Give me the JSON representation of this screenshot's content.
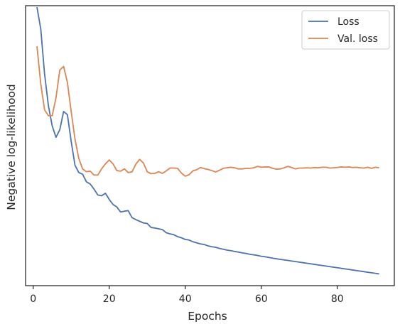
{
  "chart_data": {
    "type": "line",
    "title": "",
    "xlabel": "Epochs",
    "ylabel": "Negative log-likelihood",
    "xlim": [
      -2,
      95
    ],
    "ylim": [
      0,
      100
    ],
    "xticks": [
      0,
      20,
      40,
      60,
      80
    ],
    "yticks": [],
    "grid": false,
    "legend_position": "top-right",
    "series": [
      {
        "name": "Loss",
        "color": "#4c72b0",
        "x": [
          1,
          2,
          3,
          4,
          5,
          6,
          7,
          8,
          9,
          10,
          11,
          12,
          13,
          14,
          15,
          16,
          17,
          18,
          19,
          20,
          21,
          22,
          23,
          24,
          25,
          26,
          27,
          28,
          29,
          30,
          31,
          32,
          33,
          34,
          35,
          36,
          37,
          38,
          39,
          40,
          41,
          42,
          43,
          44,
          45,
          46,
          47,
          48,
          49,
          50,
          51,
          52,
          53,
          54,
          55,
          56,
          57,
          58,
          59,
          60,
          61,
          62,
          63,
          64,
          65,
          66,
          67,
          68,
          69,
          70,
          71,
          72,
          73,
          74,
          75,
          76,
          77,
          78,
          79,
          80,
          81,
          82,
          83,
          84,
          85,
          86,
          87,
          88,
          89,
          90,
          91
        ],
        "y": [
          99.5,
          91.6,
          75.6,
          64.3,
          57.1,
          53.0,
          55.7,
          62.2,
          61.1,
          51.5,
          43.0,
          40.4,
          39.8,
          37.1,
          36.3,
          34.5,
          32.4,
          32.1,
          33.0,
          30.8,
          29.0,
          28.1,
          26.3,
          26.6,
          26.8,
          24.3,
          23.6,
          23.0,
          22.4,
          22.2,
          20.8,
          20.6,
          20.3,
          20.0,
          18.9,
          18.5,
          18.2,
          17.5,
          17.1,
          16.5,
          16.3,
          15.7,
          15.3,
          14.9,
          14.7,
          14.2,
          13.9,
          13.7,
          13.3,
          13.0,
          12.7,
          12.5,
          12.2,
          12.0,
          11.7,
          11.5,
          11.2,
          11.0,
          10.8,
          10.5,
          10.3,
          10.1,
          9.8,
          9.6,
          9.4,
          9.2,
          9.0,
          8.8,
          8.6,
          8.4,
          8.2,
          8.0,
          7.8,
          7.6,
          7.4,
          7.2,
          7.0,
          6.8,
          6.6,
          6.4,
          6.2,
          6.0,
          5.8,
          5.6,
          5.4,
          5.2,
          5.0,
          4.8,
          4.6,
          4.4,
          4.2
        ]
      },
      {
        "name": "Val. loss",
        "color": "#dd8452",
        "x": [
          1,
          2,
          3,
          4,
          5,
          6,
          7,
          8,
          9,
          10,
          11,
          12,
          13,
          14,
          15,
          16,
          17,
          18,
          19,
          20,
          21,
          22,
          23,
          24,
          25,
          26,
          27,
          28,
          29,
          30,
          31,
          32,
          33,
          34,
          35,
          36,
          37,
          38,
          39,
          40,
          41,
          42,
          43,
          44,
          45,
          46,
          47,
          48,
          49,
          50,
          51,
          52,
          53,
          54,
          55,
          56,
          57,
          58,
          59,
          60,
          61,
          62,
          63,
          64,
          65,
          66,
          67,
          68,
          69,
          70,
          71,
          72,
          73,
          74,
          75,
          76,
          77,
          78,
          79,
          80,
          81,
          82,
          83,
          84,
          85,
          86,
          87,
          88,
          89,
          90,
          91
        ],
        "y": [
          85.5,
          72.0,
          62.8,
          60.7,
          60.7,
          67.1,
          77.0,
          78.3,
          72.6,
          62.2,
          52.3,
          45.4,
          41.7,
          40.7,
          40.9,
          39.5,
          39.5,
          41.7,
          43.5,
          44.9,
          43.5,
          41.1,
          40.9,
          41.7,
          40.4,
          40.6,
          43.4,
          45.1,
          43.8,
          40.7,
          40.0,
          40.1,
          40.7,
          40.1,
          41.0,
          42.0,
          42.0,
          41.9,
          40.2,
          39.1,
          39.6,
          41.0,
          41.4,
          42.2,
          41.8,
          41.5,
          41.1,
          40.6,
          41.2,
          41.9,
          42.1,
          42.3,
          42.1,
          41.7,
          41.7,
          41.9,
          41.9,
          42.1,
          42.6,
          42.3,
          42.4,
          42.4,
          41.9,
          41.6,
          41.7,
          42.1,
          42.6,
          42.2,
          41.7,
          42.0,
          42.0,
          42.1,
          42.0,
          42.2,
          42.1,
          42.3,
          42.3,
          42.0,
          42.1,
          42.2,
          42.4,
          42.3,
          42.4,
          42.2,
          42.3,
          42.1,
          42.0,
          42.3,
          41.9,
          42.3,
          42.1
        ]
      }
    ]
  }
}
